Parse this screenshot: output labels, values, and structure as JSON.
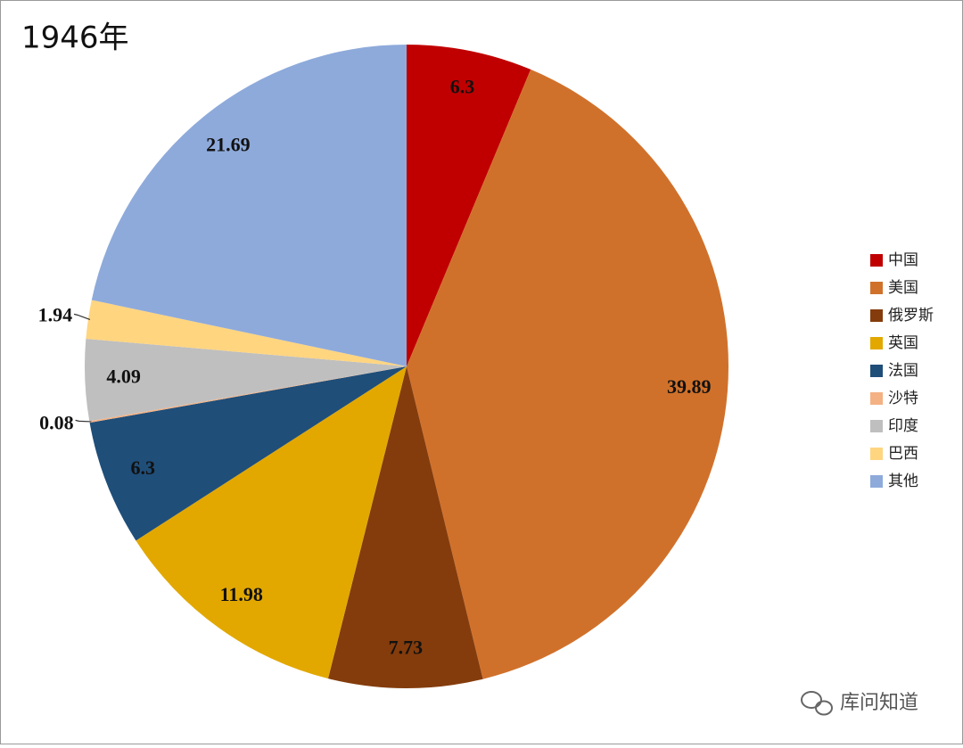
{
  "chart_data": {
    "type": "pie",
    "title": "1946年",
    "categories": [
      "中国",
      "美国",
      "俄罗斯",
      "英国",
      "法国",
      "沙特",
      "印度",
      "巴西",
      "其他"
    ],
    "values": [
      6.3,
      39.89,
      7.73,
      11.98,
      6.3,
      0.08,
      4.09,
      1.94,
      21.69
    ],
    "colors": [
      "#c00000",
      "#d0712b",
      "#843c0c",
      "#e2a800",
      "#1f4e79",
      "#f4b183",
      "#bfbfbf",
      "#ffd580",
      "#8eaadb"
    ],
    "legend": "right"
  },
  "watermark": "库问知道"
}
